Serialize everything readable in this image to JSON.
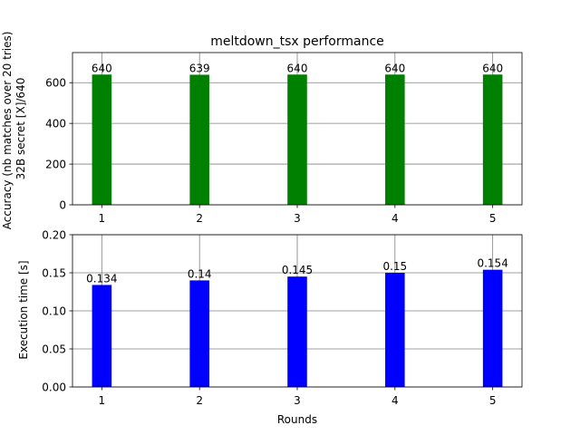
{
  "chart_data": [
    {
      "type": "bar",
      "title": "meltdown_tsx performance",
      "xlabel": "",
      "ylabel": "Accuracy (nb matches over 20 tries)\n32B secret    [X]/640",
      "categories": [
        "1",
        "2",
        "3",
        "4",
        "5"
      ],
      "x": [
        1,
        2,
        3,
        4,
        5
      ],
      "values": [
        640,
        639,
        640,
        640,
        640
      ],
      "data_labels": [
        "640",
        "639",
        "640",
        "640",
        "640"
      ],
      "color": "#008000",
      "ylim": [
        0,
        748
      ],
      "yticks": [
        0,
        200,
        400,
        600
      ],
      "ytick_labels": [
        "0",
        "200",
        "400",
        "600"
      ],
      "grid": true
    },
    {
      "type": "bar",
      "title": "",
      "xlabel": "Rounds",
      "ylabel": "Execution time [s]",
      "categories": [
        "1",
        "2",
        "3",
        "4",
        "5"
      ],
      "x": [
        1,
        2,
        3,
        4,
        5
      ],
      "values": [
        0.134,
        0.14,
        0.145,
        0.15,
        0.154
      ],
      "data_labels": [
        "0.134",
        "0.14",
        "0.145",
        "0.15",
        "0.154"
      ],
      "color": "#0000ff",
      "ylim": [
        0,
        0.2
      ],
      "yticks": [
        0,
        0.05,
        0.1,
        0.15,
        0.2
      ],
      "ytick_labels": [
        "0.00",
        "0.05",
        "0.10",
        "0.15",
        "0.20"
      ],
      "grid": true
    }
  ],
  "colors": {
    "grid": "#808080",
    "axes": "#000000"
  }
}
